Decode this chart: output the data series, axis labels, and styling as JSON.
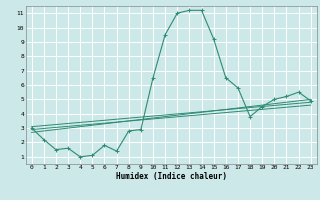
{
  "xlabel": "Humidex (Indice chaleur)",
  "xlim": [
    -0.5,
    23.5
  ],
  "ylim": [
    0.5,
    11.5
  ],
  "xticks": [
    0,
    1,
    2,
    3,
    4,
    5,
    6,
    7,
    8,
    9,
    10,
    11,
    12,
    13,
    14,
    15,
    16,
    17,
    18,
    19,
    20,
    21,
    22,
    23
  ],
  "yticks": [
    1,
    2,
    3,
    4,
    5,
    6,
    7,
    8,
    9,
    10,
    11
  ],
  "background_color": "#cce8e8",
  "grid_color": "#ffffff",
  "line_color": "#2e8b74",
  "main_curve_x": [
    0,
    1,
    2,
    3,
    4,
    5,
    6,
    7,
    8,
    9,
    10,
    11,
    12,
    13,
    14,
    15,
    16,
    17,
    18,
    19,
    20,
    21,
    22,
    23
  ],
  "main_curve_y": [
    3.0,
    2.2,
    1.5,
    1.6,
    1.0,
    1.1,
    1.8,
    1.4,
    2.8,
    2.9,
    6.5,
    9.5,
    11.0,
    11.2,
    11.2,
    9.2,
    6.5,
    5.8,
    3.8,
    4.5,
    5.0,
    5.2,
    5.5,
    4.9
  ],
  "reg_line1_x": [
    0,
    23
  ],
  "reg_line1_y": [
    2.7,
    5.0
  ],
  "reg_line2_x": [
    0,
    23
  ],
  "reg_line2_y": [
    2.9,
    4.6
  ],
  "reg_line3_x": [
    0,
    23
  ],
  "reg_line3_y": [
    3.1,
    4.8
  ]
}
